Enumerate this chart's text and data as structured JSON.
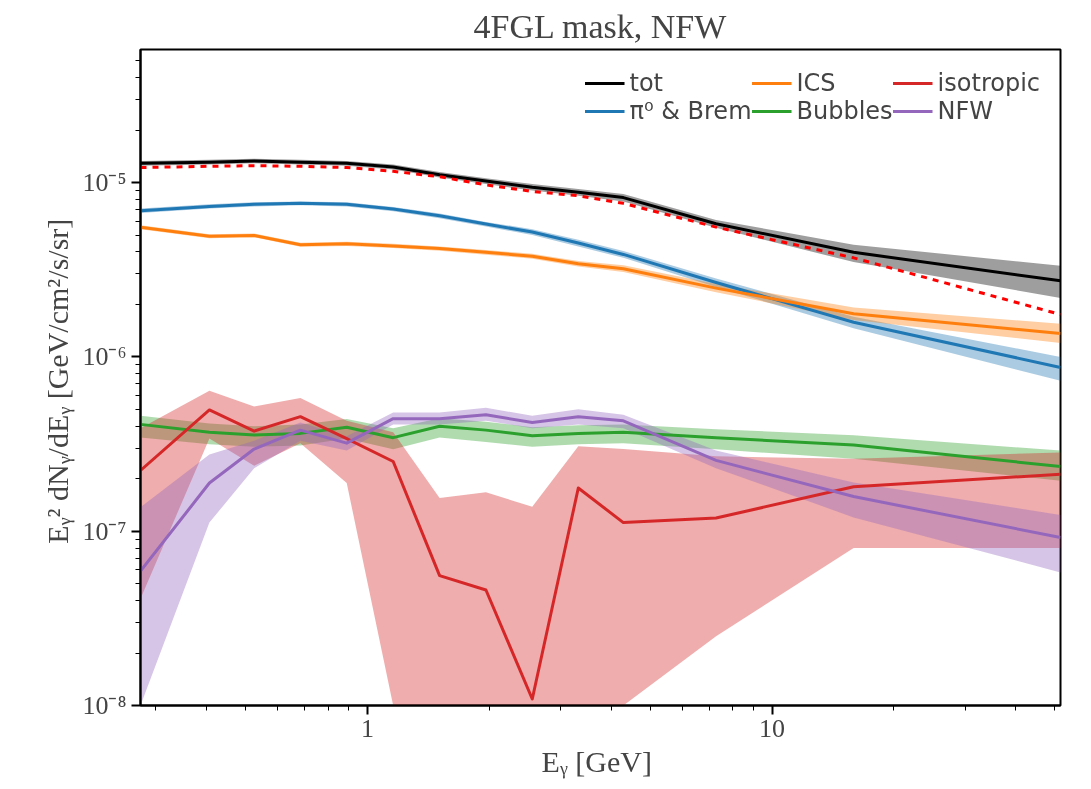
{
  "chart_data": {
    "type": "line",
    "title": "4FGL mask, NFW",
    "xlabel": "Eᵧ  [GeV]",
    "ylabel": "Eᵧ² dNᵧ/dEᵧ  [GeV/cm²/s/sr]",
    "x": [
      0.275,
      0.407,
      0.525,
      0.683,
      0.889,
      1.158,
      1.508,
      1.963,
      2.555,
      3.32,
      4.29,
      7.27,
      15.9,
      51.6
    ],
    "log": "xy",
    "grid": false,
    "legend": "top right",
    "line_style": "solid",
    "marker": "none",
    "xlim": [
      0.275,
      51.6
    ],
    "ylim": [
      1e-08,
      5.8e-05
    ],
    "xticks": [
      {
        "value": 0.3,
        "label": null
      },
      {
        "value": 0.4,
        "label": null
      },
      {
        "value": 0.5,
        "label": null
      },
      {
        "value": 0.6,
        "label": null
      },
      {
        "value": 0.7,
        "label": null
      },
      {
        "value": 0.8,
        "label": null
      },
      {
        "value": 0.9,
        "label": null
      },
      1,
      {
        "value": 2,
        "label": null
      },
      {
        "value": 3,
        "label": null
      },
      {
        "value": 4,
        "label": null
      },
      {
        "value": 5,
        "label": null
      },
      {
        "value": 6,
        "label": null
      },
      {
        "value": 7,
        "label": null
      },
      {
        "value": 8,
        "label": null
      },
      {
        "value": 9,
        "label": null
      },
      10,
      {
        "value": 20,
        "label": null
      },
      {
        "value": 30,
        "label": null
      },
      {
        "value": 40,
        "label": null
      },
      {
        "value": 50,
        "label": null
      }
    ],
    "yticks": [
      {
        "value": 1e-08,
        "label": "10⁻⁸"
      },
      {
        "value": 2e-08,
        "label": null
      },
      {
        "value": 3e-08,
        "label": null
      },
      {
        "value": 4e-08,
        "label": null
      },
      {
        "value": 5e-08,
        "label": null
      },
      {
        "value": 6e-08,
        "label": null
      },
      {
        "value": 7e-08,
        "label": null
      },
      {
        "value": 8e-08,
        "label": null
      },
      {
        "value": 9e-08,
        "label": null
      },
      {
        "value": 1e-07,
        "label": "10⁻⁷"
      },
      {
        "value": 2e-07,
        "label": null
      },
      {
        "value": 3e-07,
        "label": null
      },
      {
        "value": 4e-07,
        "label": null
      },
      {
        "value": 5e-07,
        "label": null
      },
      {
        "value": 6e-07,
        "label": null
      },
      {
        "value": 7e-07,
        "label": null
      },
      {
        "value": 8e-07,
        "label": null
      },
      {
        "value": 9e-07,
        "label": null
      },
      {
        "value": 1e-06,
        "label": "10⁻⁶"
      },
      {
        "value": 2e-06,
        "label": null
      },
      {
        "value": 3e-06,
        "label": null
      },
      {
        "value": 4e-06,
        "label": null
      },
      {
        "value": 5e-06,
        "label": null
      },
      {
        "value": 6e-06,
        "label": null
      },
      {
        "value": 7e-06,
        "label": null
      },
      {
        "value": 8e-06,
        "label": null
      },
      {
        "value": 9e-06,
        "label": null
      },
      {
        "value": 1e-05,
        "label": "10⁻⁵"
      },
      {
        "value": 2e-05,
        "label": null
      },
      {
        "value": 3e-05,
        "label": null
      },
      {
        "value": 4e-05,
        "label": null
      },
      {
        "value": 5e-05,
        "label": null
      }
    ],
    "series": [
      {
        "name": "tot",
        "color": "#000000",
        "values": [
          1.29e-05,
          1.31e-05,
          1.33e-05,
          1.31e-05,
          1.29e-05,
          1.23e-05,
          1.11e-05,
          1.02e-05,
          9.4e-06,
          8.8e-06,
          8.2e-06,
          5.8e-06,
          3.98e-06,
          2.73e-06
        ],
        "upper": [
          1.33e-05,
          1.35e-05,
          1.37e-05,
          1.35e-05,
          1.33e-05,
          1.27e-05,
          1.15e-05,
          1.06e-05,
          9.8e-06,
          9.2e-06,
          8.6e-06,
          6.1e-06,
          4.4e-06,
          3.33e-06
        ],
        "lower": [
          1.25e-05,
          1.27e-05,
          1.29e-05,
          1.27e-05,
          1.25e-05,
          1.19e-05,
          1.07e-05,
          9.8e-06,
          9e-06,
          8.4e-06,
          7.8e-06,
          5.5e-06,
          3.5e-06,
          2.18e-06
        ]
      },
      {
        "name": "π⁰ & Brem",
        "color": "#1f77b4",
        "values": [
          6.9e-06,
          7.3e-06,
          7.5e-06,
          7.6e-06,
          7.5e-06,
          7.05e-06,
          6.45e-06,
          5.78e-06,
          5.2e-06,
          4.5e-06,
          3.87e-06,
          2.67e-06,
          1.58e-06,
          8.7e-07
        ],
        "upper": [
          7.1e-06,
          7.5e-06,
          7.7e-06,
          7.8e-06,
          7.7e-06,
          7.25e-06,
          6.65e-06,
          5.95e-06,
          5.4e-06,
          4.7e-06,
          4.05e-06,
          2.82e-06,
          1.7e-06,
          1e-06
        ],
        "lower": [
          6.7e-06,
          7.1e-06,
          7.3e-06,
          7.4e-06,
          7.3e-06,
          6.85e-06,
          6.25e-06,
          5.6e-06,
          5e-06,
          4.3e-06,
          3.7e-06,
          2.52e-06,
          1.46e-06,
          7.3e-07
        ]
      },
      {
        "name": "ICS",
        "color": "#ff7f0e",
        "values": [
          5.55e-06,
          4.92e-06,
          4.97e-06,
          4.4e-06,
          4.45e-06,
          4.33e-06,
          4.18e-06,
          3.98e-06,
          3.78e-06,
          3.42e-06,
          3.2e-06,
          2.48e-06,
          1.77e-06,
          1.36e-06
        ],
        "upper": [
          5.7e-06,
          5.05e-06,
          5.1e-06,
          4.52e-06,
          4.57e-06,
          4.45e-06,
          4.3e-06,
          4.1e-06,
          3.9e-06,
          3.55e-06,
          3.35e-06,
          2.62e-06,
          1.92e-06,
          1.55e-06
        ],
        "lower": [
          5.4e-06,
          4.8e-06,
          4.85e-06,
          4.28e-06,
          4.33e-06,
          4.21e-06,
          4.06e-06,
          3.86e-06,
          3.66e-06,
          3.3e-06,
          3.07e-06,
          2.35e-06,
          1.63e-06,
          1.2e-06
        ]
      },
      {
        "name": "Bubbles",
        "color": "#2ca02c",
        "values": [
          4.1e-07,
          3.7e-07,
          3.56e-07,
          3.64e-07,
          3.95e-07,
          3.44e-07,
          4e-07,
          3.8e-07,
          3.53e-07,
          3.64e-07,
          3.7e-07,
          3.44e-07,
          3.12e-07,
          2.35e-07
        ],
        "upper": [
          4.6e-07,
          4.15e-07,
          4e-07,
          4.1e-07,
          4.4e-07,
          3.9e-07,
          4.45e-07,
          4.25e-07,
          3.95e-07,
          4.05e-07,
          4.1e-07,
          3.85e-07,
          3.55e-07,
          2.9e-07
        ],
        "lower": [
          3.45e-07,
          3.15e-07,
          3.05e-07,
          3.1e-07,
          3.4e-07,
          2.95e-07,
          3.45e-07,
          3.25e-07,
          3.05e-07,
          3.15e-07,
          3.2e-07,
          2.95e-07,
          2.6e-07,
          1.95e-07
        ]
      },
      {
        "name": "isotropic",
        "color": "#d62728",
        "values": [
          2.23e-07,
          4.96e-07,
          3.75e-07,
          4.54e-07,
          3.4e-07,
          2.51e-07,
          5.56e-08,
          4.6e-08,
          1.09e-08,
          1.77e-07,
          1.12e-07,
          1.19e-07,
          1.8e-07,
          2.12e-07
        ],
        "upper": [
          3.9e-07,
          6.4e-07,
          5.2e-07,
          5.8e-07,
          4.3e-07,
          3.7e-07,
          1.55e-07,
          1.67e-07,
          1.38e-07,
          3.07e-07,
          2.96e-07,
          2.69e-07,
          2.6e-07,
          2.83e-07
        ],
        "lower": [
          4.1e-08,
          3.4e-07,
          2.37e-07,
          3.2e-07,
          1.89e-07,
          1e-08,
          1e-08,
          1e-08,
          1e-08,
          1e-08,
          1e-08,
          2.5e-08,
          8e-08,
          8e-08
        ]
      },
      {
        "name": "NFW",
        "color": "#9467bd",
        "values": [
          5.9e-08,
          1.89e-07,
          2.96e-07,
          3.8e-07,
          3.2e-07,
          4.42e-07,
          4.42e-07,
          4.66e-07,
          4.2e-07,
          4.54e-07,
          4.3e-07,
          2.55e-07,
          1.58e-07,
          9.2e-08
        ],
        "upper": [
          1.37e-07,
          2.75e-07,
          3.3e-07,
          4.2e-07,
          3.5e-07,
          4.8e-07,
          4.8e-07,
          5.1e-07,
          4.6e-07,
          5e-07,
          4.66e-07,
          2.9e-07,
          1.9e-07,
          1.24e-07
        ],
        "lower": [
          1e-08,
          1.12e-07,
          2.3e-07,
          3.3e-07,
          2.9e-07,
          4.1e-07,
          4.1e-07,
          4.3e-07,
          3.9e-07,
          4.1e-07,
          3.9e-07,
          2.3e-07,
          1.2e-07,
          5.8e-08
        ]
      },
      {
        "color": "#ff0000",
        "line_style": "dashed",
        "values": [
          1.22e-05,
          1.24e-05,
          1.25e-05,
          1.24e-05,
          1.22e-05,
          1.16e-05,
          1.08e-05,
          9.7e-06,
          8.9e-06,
          8.4e-06,
          7.6e-06,
          5.55e-06,
          3.7e-06,
          1.75e-06
        ]
      }
    ]
  }
}
